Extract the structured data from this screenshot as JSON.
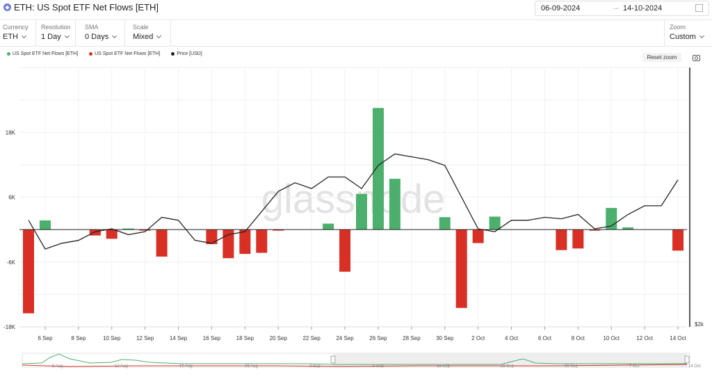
{
  "header": {
    "title": "ETH: US Spot ETF Net Flows [ETH]",
    "date_from": "06-09-2024",
    "date_to": "14-10-2024"
  },
  "controls": {
    "currency": {
      "label": "Currency",
      "value": "ETH"
    },
    "resolution": {
      "label": "Resolution",
      "value": "1 Day"
    },
    "sma": {
      "label": "SMA",
      "value": "0 Days"
    },
    "scale": {
      "label": "Scale",
      "value": "Mixed"
    },
    "zoom": {
      "label": "Zoom",
      "value": "Custom"
    }
  },
  "reset_zoom_label": "Reset zoom",
  "watermark": "glassnode",
  "colors": {
    "positive": "#4caf6e",
    "negative": "#d93025",
    "price": "#222222"
  },
  "chart_data": {
    "type": "bar",
    "legend": [
      "US Spot ETF Net Flows [ETH]",
      "US Spot ETF Net Flows [ETH]",
      "Price [USD]"
    ],
    "legend_colors": [
      "#4caf6e",
      "#d93025",
      "#222222"
    ],
    "legend_placement": "top-left",
    "x_tick_labels": [
      "6 Sep",
      "8 Sep",
      "10 Sep",
      "12 Sep",
      "14 Sep",
      "16 Sep",
      "18 Sep",
      "20 Sep",
      "22 Sep",
      "24 Sep",
      "26 Sep",
      "28 Sep",
      "30 Sep",
      "2 Oct",
      "4 Oct",
      "6 Oct",
      "8 Oct",
      "10 Oct",
      "12 Oct",
      "14 Oct"
    ],
    "y_tick_labels": [
      "18K",
      "6K",
      "-6K",
      "-18K"
    ],
    "y_ticks": [
      18000,
      6000,
      -6000,
      -18000
    ],
    "y_right_label": "$2k",
    "ylim": [
      -18000,
      30000
    ],
    "grid": true,
    "dates": [
      "2024-09-05",
      "2024-09-06",
      "2024-09-07",
      "2024-09-08",
      "2024-09-09",
      "2024-09-10",
      "2024-09-11",
      "2024-09-12",
      "2024-09-13",
      "2024-09-14",
      "2024-09-15",
      "2024-09-16",
      "2024-09-17",
      "2024-09-18",
      "2024-09-19",
      "2024-09-20",
      "2024-09-21",
      "2024-09-22",
      "2024-09-23",
      "2024-09-24",
      "2024-09-25",
      "2024-09-26",
      "2024-09-27",
      "2024-09-28",
      "2024-09-29",
      "2024-09-30",
      "2024-10-01",
      "2024-10-02",
      "2024-10-03",
      "2024-10-04",
      "2024-10-05",
      "2024-10-06",
      "2024-10-07",
      "2024-10-08",
      "2024-10-09",
      "2024-10-10",
      "2024-10-11",
      "2024-10-12",
      "2024-10-13",
      "2024-10-14"
    ],
    "values": [
      -15500,
      1700,
      0,
      0,
      -1100,
      -1700,
      200,
      -200,
      -5000,
      0,
      0,
      -2700,
      -5300,
      -4500,
      -4300,
      -200,
      0,
      0,
      1100,
      -7800,
      6600,
      22500,
      9400,
      0,
      0,
      2300,
      -14500,
      -2500,
      2400,
      0,
      0,
      0,
      -3800,
      -3500,
      -200,
      4000,
      400,
      0,
      0,
      -3900
    ],
    "price_usd": [
      2370,
      2270,
      2290,
      2300,
      2330,
      2340,
      2320,
      2330,
      2380,
      2370,
      2300,
      2290,
      2320,
      2330,
      2400,
      2470,
      2500,
      2480,
      2520,
      2520,
      2480,
      2560,
      2600,
      2590,
      2580,
      2560,
      2450,
      2340,
      2330,
      2370,
      2370,
      2380,
      2375,
      2390,
      2340,
      2350,
      2390,
      2420,
      2420,
      2510
    ],
    "navigator_labels": [
      "5 Aug",
      "12 Aug",
      "19 Aug",
      "26 Aug",
      "2 Sep",
      "9 Sep",
      "16 Sep",
      "23 Sep",
      "30 Sep",
      "7 Oct",
      "14 Oct"
    ]
  }
}
